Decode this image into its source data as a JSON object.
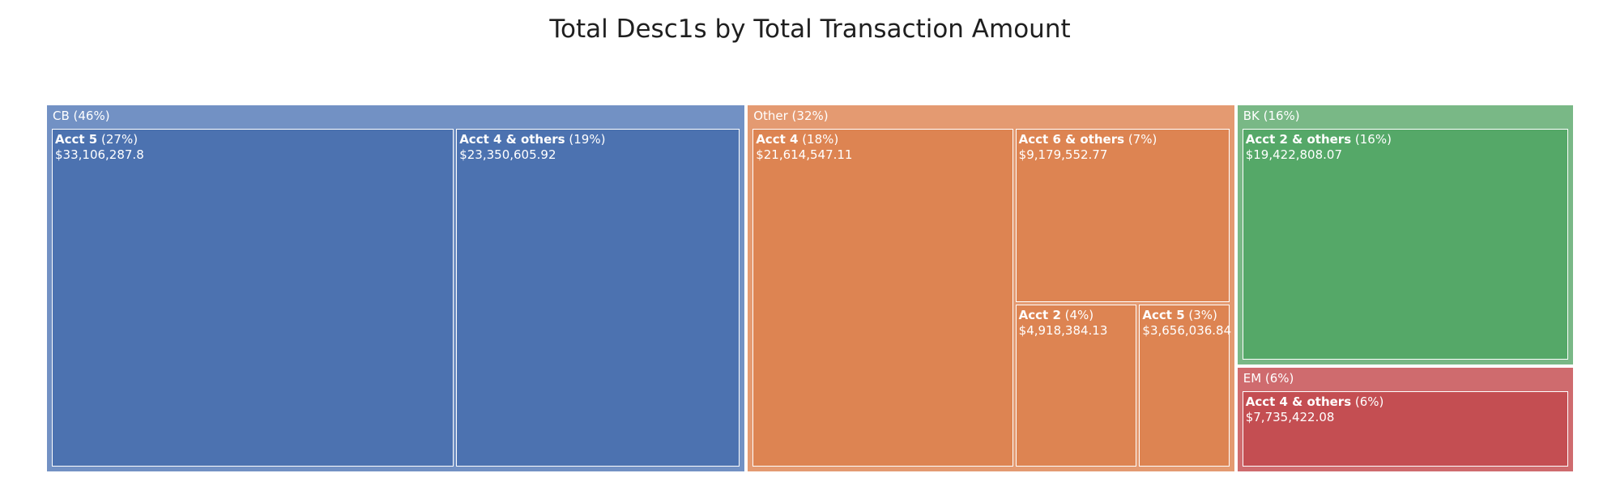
{
  "chart_data": {
    "type": "treemap",
    "title": "Total Desc1s by Total Transaction Amount",
    "parents": [
      {
        "name": "CB",
        "percent_label": "(46%)",
        "color": "#7291c4",
        "children": [
          {
            "name": "Acct 5",
            "percent_label": "(27%)",
            "value": 33106287.8,
            "value_label": "$33,106,287.8",
            "color": "#4c72b0"
          },
          {
            "name": "Acct 4 & others",
            "percent_label": "(19%)",
            "value": 23350605.92,
            "value_label": "$23,350,605.92",
            "color": "#4c72b0"
          }
        ]
      },
      {
        "name": "Other",
        "percent_label": "(32%)",
        "color": "#e49a71",
        "children": [
          {
            "name": "Acct 4",
            "percent_label": "(18%)",
            "value": 21614547.11,
            "value_label": "$21,614,547.11",
            "color": "#dd8452"
          },
          {
            "name": "Acct 6 & others",
            "percent_label": "(7%)",
            "value": 9179552.77,
            "value_label": "$9,179,552.77",
            "color": "#dd8452"
          },
          {
            "name": "Acct 2",
            "percent_label": "(4%)",
            "value": 4918384.13,
            "value_label": "$4,918,384.13",
            "color": "#dd8452"
          },
          {
            "name": "Acct 5",
            "percent_label": "(3%)",
            "value": 3656036.84,
            "value_label": "$3,656,036.84",
            "color": "#dd8452"
          }
        ]
      },
      {
        "name": "BK",
        "percent_label": "(16%)",
        "color": "#79b886",
        "children": [
          {
            "name": "Acct 2 & others",
            "percent_label": "(16%)",
            "value": 19422808.07,
            "value_label": "$19,422,808.07",
            "color": "#55a868"
          }
        ]
      },
      {
        "name": "EM",
        "percent_label": "(6%)",
        "color": "#cf6b6e",
        "children": [
          {
            "name": "Acct 4 & others",
            "percent_label": "(6%)",
            "value": 7735422.08,
            "value_label": "$7,735,422.08",
            "color": "#c44e52"
          }
        ]
      }
    ]
  }
}
